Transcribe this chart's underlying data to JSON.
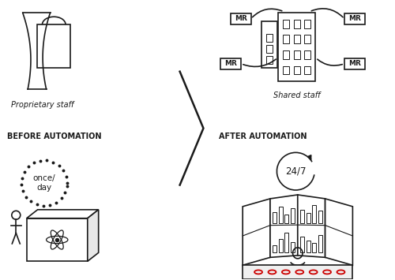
{
  "bg_color": "#ffffff",
  "line_color": "#1a1a1a",
  "red_color": "#cc0000",
  "fig_width": 5.0,
  "fig_height": 3.55,
  "before_label": "BEFORE AUTOMATION",
  "after_label": "AFTER AUTOMATION",
  "prop_staff_label": "Proprietary staff",
  "shared_staff_label": "Shared staff",
  "once_day_label": "once/\nday",
  "time_247_label": "24/7"
}
